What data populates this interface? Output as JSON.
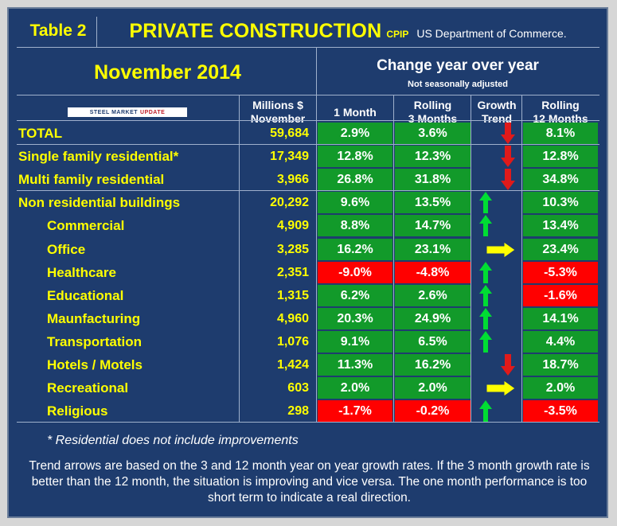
{
  "header": {
    "table_label": "Table 2",
    "title": "PRIVATE CONSTRUCTION",
    "title_tag": "CPIP",
    "source": "US Department of Commerce.",
    "period": "November 2014",
    "change_title": "Change year over year",
    "adjustment_note": "Not seasonally adjusted"
  },
  "logo": {
    "part1": "STEEL MARKET",
    "part2": "UPDATE"
  },
  "columns": {
    "value_line1": "Millions $",
    "value_line2": "November",
    "one_month": "1 Month",
    "rolling3_line1": "Rolling",
    "rolling3_line2": "3 Months",
    "trend_line1": "Growth",
    "trend_line2": "Trend",
    "rolling12_line1": "Rolling",
    "rolling12_line2": "12 Months"
  },
  "rows": [
    {
      "name": "TOTAL",
      "value": "59,684",
      "m1": "2.9%",
      "m1_color": "green",
      "m3": "3.6%",
      "m3_color": "green",
      "trend": "down",
      "m12": "8.1%",
      "m12_color": "green",
      "indent": false
    },
    {
      "name": "Single family residential*",
      "value": "17,349",
      "m1": "12.8%",
      "m1_color": "green",
      "m3": "12.3%",
      "m3_color": "green",
      "trend": "down",
      "m12": "12.8%",
      "m12_color": "green",
      "indent": false
    },
    {
      "name": "Multi family residential",
      "value": "3,966",
      "m1": "26.8%",
      "m1_color": "green",
      "m3": "31.8%",
      "m3_color": "green",
      "trend": "down",
      "m12": "34.8%",
      "m12_color": "green",
      "indent": false
    },
    {
      "name": "Non residential buildings",
      "value": "20,292",
      "m1": "9.6%",
      "m1_color": "green",
      "m3": "13.5%",
      "m3_color": "green",
      "trend": "up",
      "m12": "10.3%",
      "m12_color": "green",
      "indent": false
    },
    {
      "name": "Commercial",
      "value": "4,909",
      "m1": "8.8%",
      "m1_color": "green",
      "m3": "14.7%",
      "m3_color": "green",
      "trend": "up",
      "m12": "13.4%",
      "m12_color": "green",
      "indent": true
    },
    {
      "name": "Office",
      "value": "3,285",
      "m1": "16.2%",
      "m1_color": "green",
      "m3": "23.1%",
      "m3_color": "green",
      "trend": "right",
      "m12": "23.4%",
      "m12_color": "green",
      "indent": true
    },
    {
      "name": "Healthcare",
      "value": "2,351",
      "m1": "-9.0%",
      "m1_color": "red",
      "m3": "-4.8%",
      "m3_color": "red",
      "trend": "up",
      "m12": "-5.3%",
      "m12_color": "red",
      "indent": true
    },
    {
      "name": "Educational",
      "value": "1,315",
      "m1": "6.2%",
      "m1_color": "green",
      "m3": "2.6%",
      "m3_color": "green",
      "trend": "up",
      "m12": "-1.6%",
      "m12_color": "red",
      "indent": true
    },
    {
      "name": "Maunfacturing",
      "value": "4,960",
      "m1": "20.3%",
      "m1_color": "green",
      "m3": "24.9%",
      "m3_color": "green",
      "trend": "up",
      "m12": "14.1%",
      "m12_color": "green",
      "indent": true
    },
    {
      "name": "Transportation",
      "value": "1,076",
      "m1": "9.1%",
      "m1_color": "green",
      "m3": "6.5%",
      "m3_color": "green",
      "trend": "up",
      "m12": "4.4%",
      "m12_color": "green",
      "indent": true
    },
    {
      "name": "Hotels / Motels",
      "value": "1,424",
      "m1": "11.3%",
      "m1_color": "green",
      "m3": "16.2%",
      "m3_color": "green",
      "trend": "down",
      "m12": "18.7%",
      "m12_color": "green",
      "indent": true
    },
    {
      "name": "Recreational",
      "value": "603",
      "m1": "2.0%",
      "m1_color": "green",
      "m3": "2.0%",
      "m3_color": "green",
      "trend": "right",
      "m12": "2.0%",
      "m12_color": "green",
      "indent": true
    },
    {
      "name": "Religious",
      "value": "298",
      "m1": "-1.7%",
      "m1_color": "red",
      "m3": "-0.2%",
      "m3_color": "red",
      "trend": "up",
      "m12": "-3.5%",
      "m12_color": "red",
      "indent": true
    }
  ],
  "colors": {
    "background": "#1e3c6e",
    "highlight": "#ffff00",
    "positive": "#129a2a",
    "negative": "#ff0000",
    "up_arrow": "#00dd33",
    "down_arrow": "#e01a1a",
    "right_arrow": "#ffff00"
  },
  "footnote": "* Residential does not include improvements",
  "explanation": "Trend arrows are based on the 3 and 12 month year on year growth rates. If the 3 month growth rate is better than the 12 month, the situation is improving and vice versa. The one month performance is too short term to indicate a real direction."
}
